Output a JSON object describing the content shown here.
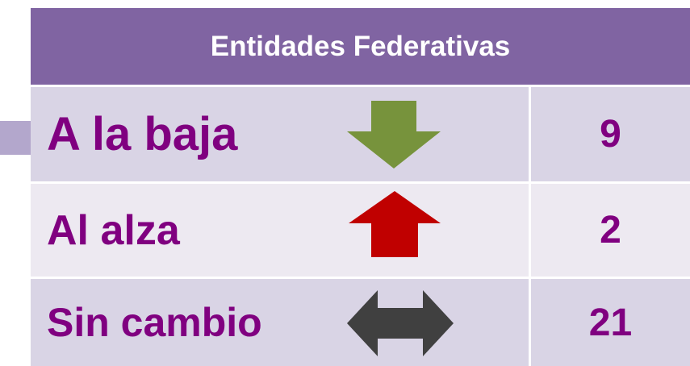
{
  "header": {
    "title": "Entidades Federativas"
  },
  "table": {
    "rows": [
      {
        "label": "A la baja",
        "value": 9
      },
      {
        "label": "Al alza",
        "value": 2
      },
      {
        "label": "Sin cambio",
        "value": 21
      }
    ]
  }
}
